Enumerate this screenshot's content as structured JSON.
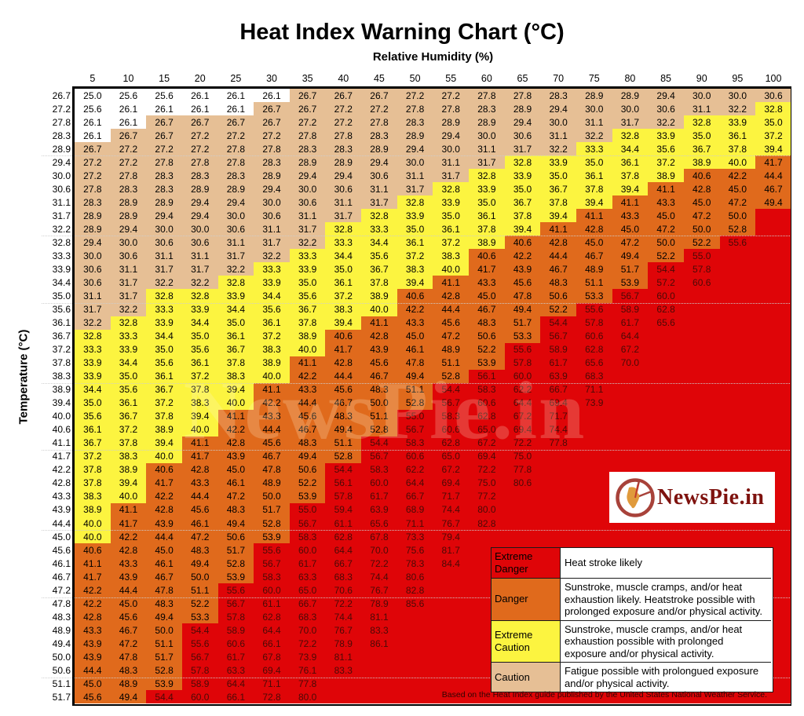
{
  "title": "Heat Index Warning Chart (°C)",
  "x_axis_label": "Relative Humidity (%)",
  "y_axis_label": "Temperature (°C)",
  "footnote": "Based on the Heat Index guide published by the United States National Weather Service.",
  "watermark": {
    "text": "NewsPie.in"
  },
  "logo": {
    "text": "NewsPie.in"
  },
  "colors": {
    "none": "#FFFFFF",
    "caution": "#E6BF95",
    "extreme_caution": "#FCF440",
    "danger": "#E06A1C",
    "extreme_danger": "#DF0508"
  },
  "legend": [
    {
      "label": "Extreme Danger",
      "color_key": "extreme_danger",
      "description": "Heat stroke likely"
    },
    {
      "label": "Danger",
      "color_key": "danger",
      "description": "Sunstroke, muscle cramps, and/or heat exhaustion likely. Heatstroke possible with prolonged exposure and/or physical activity."
    },
    {
      "label": "Extreme Caution",
      "color_key": "extreme_caution",
      "description": "Sunstroke, muscle cramps, and/or heat exhaustion possible with prolonged exposure and/or physical activity."
    },
    {
      "label": "Caution",
      "color_key": "caution",
      "description": "Fatigue possible with prolongued exposure and/or physical activity."
    }
  ],
  "chart_data": {
    "type": "heatmap",
    "title": "Heat Index Warning Chart (°C)",
    "xlabel": "Relative Humidity (%)",
    "ylabel": "Temperature (°C)",
    "legend_position": "bottom-right",
    "blank_cells_category": "extreme_danger",
    "gridlines_after_rows": [
      4,
      10,
      15,
      21,
      26,
      32,
      37,
      43
    ],
    "categories": [
      {
        "key": "none",
        "max_c": 26.4
      },
      {
        "key": "caution",
        "max_c": 32.5
      },
      {
        "key": "extreme_caution",
        "max_c": 40.3
      },
      {
        "key": "danger",
        "max_c": 54.1
      },
      {
        "key": "extreme_danger",
        "max_c": null
      }
    ],
    "x": [
      5,
      10,
      15,
      20,
      25,
      30,
      35,
      40,
      45,
      50,
      55,
      60,
      65,
      70,
      75,
      80,
      85,
      90,
      95,
      100
    ],
    "y": [
      26.7,
      27.2,
      27.8,
      28.3,
      28.9,
      29.4,
      30.0,
      30.6,
      31.1,
      31.7,
      32.2,
      32.8,
      33.3,
      33.9,
      34.4,
      35.0,
      35.6,
      36.1,
      36.7,
      37.2,
      37.8,
      38.3,
      38.9,
      39.4,
      40.0,
      40.6,
      41.1,
      41.7,
      42.2,
      42.8,
      43.3,
      43.9,
      44.4,
      45.0,
      45.6,
      46.1,
      46.7,
      47.2,
      47.8,
      48.3,
      48.9,
      49.4,
      50.0,
      50.6,
      51.1,
      51.7
    ],
    "values": [
      [
        25.0,
        25.6,
        25.6,
        26.1,
        26.1,
        26.1,
        26.7,
        26.7,
        26.7,
        27.2,
        27.2,
        27.8,
        27.8,
        28.3,
        28.9,
        28.9,
        29.4,
        30.0,
        30.0,
        30.6
      ],
      [
        25.6,
        26.1,
        26.1,
        26.1,
        26.1,
        26.7,
        26.7,
        27.2,
        27.2,
        27.8,
        27.8,
        28.3,
        28.9,
        29.4,
        30.0,
        30.0,
        30.6,
        31.1,
        32.2,
        32.8
      ],
      [
        26.1,
        26.1,
        26.7,
        26.7,
        26.7,
        26.7,
        27.2,
        27.2,
        27.8,
        28.3,
        28.9,
        28.9,
        29.4,
        30.0,
        31.1,
        31.7,
        32.2,
        32.8,
        33.9,
        35.0
      ],
      [
        26.1,
        26.7,
        26.7,
        27.2,
        27.2,
        27.2,
        27.8,
        27.8,
        28.3,
        28.9,
        29.4,
        30.0,
        30.6,
        31.1,
        32.2,
        32.8,
        33.9,
        35.0,
        36.1,
        37.2
      ],
      [
        26.7,
        27.2,
        27.2,
        27.2,
        27.8,
        27.8,
        28.3,
        28.3,
        28.9,
        29.4,
        30.0,
        31.1,
        31.7,
        32.2,
        33.3,
        34.4,
        35.6,
        36.7,
        37.8,
        39.4
      ],
      [
        27.2,
        27.2,
        27.8,
        27.8,
        27.8,
        28.3,
        28.9,
        28.9,
        29.4,
        30.0,
        31.1,
        31.7,
        32.8,
        33.9,
        35.0,
        36.1,
        37.2,
        38.9,
        40.0,
        41.7
      ],
      [
        27.2,
        27.8,
        28.3,
        28.3,
        28.3,
        28.9,
        29.4,
        29.4,
        30.6,
        31.1,
        31.7,
        32.8,
        33.9,
        35.0,
        36.1,
        37.8,
        38.9,
        40.6,
        42.2,
        44.4
      ],
      [
        27.8,
        28.3,
        28.3,
        28.9,
        28.9,
        29.4,
        30.0,
        30.6,
        31.1,
        31.7,
        32.8,
        33.9,
        35.0,
        36.7,
        37.8,
        39.4,
        41.1,
        42.8,
        45.0,
        46.7
      ],
      [
        28.3,
        28.9,
        28.9,
        29.4,
        29.4,
        30.0,
        30.6,
        31.1,
        31.7,
        32.8,
        33.9,
        35.0,
        36.7,
        37.8,
        39.4,
        41.1,
        43.3,
        45.0,
        47.2,
        49.4
      ],
      [
        28.9,
        28.9,
        29.4,
        29.4,
        30.0,
        30.6,
        31.1,
        31.7,
        32.8,
        33.9,
        35.0,
        36.1,
        37.8,
        39.4,
        41.1,
        43.3,
        45.0,
        47.2,
        50.0,
        null
      ],
      [
        28.9,
        29.4,
        30.0,
        30.0,
        30.6,
        31.1,
        31.7,
        32.8,
        33.3,
        35.0,
        36.1,
        37.8,
        39.4,
        41.1,
        42.8,
        45.0,
        47.2,
        50.0,
        52.8,
        null
      ],
      [
        29.4,
        30.0,
        30.6,
        30.6,
        31.1,
        31.7,
        32.2,
        33.3,
        34.4,
        36.1,
        37.2,
        38.9,
        40.6,
        42.8,
        45.0,
        47.2,
        50.0,
        52.2,
        55.6,
        null
      ],
      [
        30.0,
        30.6,
        31.1,
        31.1,
        31.7,
        32.2,
        33.3,
        34.4,
        35.6,
        37.2,
        38.3,
        40.6,
        42.2,
        44.4,
        46.7,
        49.4,
        52.2,
        55.0,
        null,
        null
      ],
      [
        30.6,
        31.1,
        31.7,
        31.7,
        32.2,
        33.3,
        33.9,
        35.0,
        36.7,
        38.3,
        40.0,
        41.7,
        43.9,
        46.7,
        48.9,
        51.7,
        54.4,
        57.8,
        null,
        null
      ],
      [
        30.6,
        31.7,
        32.2,
        32.2,
        32.8,
        33.9,
        35.0,
        36.1,
        37.8,
        39.4,
        41.1,
        43.3,
        45.6,
        48.3,
        51.1,
        53.9,
        57.2,
        60.6,
        null,
        null
      ],
      [
        31.1,
        31.7,
        32.8,
        32.8,
        33.9,
        34.4,
        35.6,
        37.2,
        38.9,
        40.6,
        42.8,
        45.0,
        47.8,
        50.6,
        53.3,
        56.7,
        60.0,
        null,
        null,
        null
      ],
      [
        31.7,
        32.2,
        33.3,
        33.9,
        34.4,
        35.6,
        36.7,
        38.3,
        40.0,
        42.2,
        44.4,
        46.7,
        49.4,
        52.2,
        55.6,
        58.9,
        62.8,
        null,
        null,
        null
      ],
      [
        32.2,
        32.8,
        33.9,
        34.4,
        35.0,
        36.1,
        37.8,
        39.4,
        41.1,
        43.3,
        45.6,
        48.3,
        51.7,
        54.4,
        57.8,
        61.7,
        65.6,
        null,
        null,
        null
      ],
      [
        32.8,
        33.3,
        34.4,
        35.0,
        36.1,
        37.2,
        38.9,
        40.6,
        42.8,
        45.0,
        47.2,
        50.6,
        53.3,
        56.7,
        60.6,
        64.4,
        null,
        null,
        null,
        null
      ],
      [
        33.3,
        33.9,
        35.0,
        35.6,
        36.7,
        38.3,
        40.0,
        41.7,
        43.9,
        46.1,
        48.9,
        52.2,
        55.6,
        58.9,
        62.8,
        67.2,
        null,
        null,
        null,
        null
      ],
      [
        33.9,
        34.4,
        35.6,
        36.1,
        37.8,
        38.9,
        41.1,
        42.8,
        45.6,
        47.8,
        51.1,
        53.9,
        57.8,
        61.7,
        65.6,
        70.0,
        null,
        null,
        null,
        null
      ],
      [
        33.9,
        35.0,
        36.1,
        37.2,
        38.3,
        40.0,
        42.2,
        44.4,
        46.7,
        49.4,
        52.8,
        56.1,
        60.0,
        63.9,
        68.3,
        null,
        null,
        null,
        null,
        null
      ],
      [
        34.4,
        35.6,
        36.7,
        37.8,
        39.4,
        41.1,
        43.3,
        45.6,
        48.3,
        51.1,
        54.4,
        58.3,
        62.2,
        66.7,
        71.1,
        null,
        null,
        null,
        null,
        null
      ],
      [
        35.0,
        36.1,
        37.2,
        38.3,
        40.0,
        42.2,
        44.4,
        46.7,
        50.0,
        52.8,
        56.7,
        60.6,
        64.4,
        69.4,
        73.9,
        null,
        null,
        null,
        null,
        null
      ],
      [
        35.6,
        36.7,
        37.8,
        39.4,
        41.1,
        43.3,
        45.6,
        48.3,
        51.1,
        55.0,
        58.3,
        62.8,
        67.2,
        71.7,
        null,
        null,
        null,
        null,
        null,
        null
      ],
      [
        36.1,
        37.2,
        38.9,
        40.0,
        42.2,
        44.4,
        46.7,
        49.4,
        52.8,
        56.7,
        60.6,
        65.0,
        69.4,
        74.4,
        null,
        null,
        null,
        null,
        null,
        null
      ],
      [
        36.7,
        37.8,
        39.4,
        41.1,
        42.8,
        45.6,
        48.3,
        51.1,
        54.4,
        58.3,
        62.8,
        67.2,
        72.2,
        77.8,
        null,
        null,
        null,
        null,
        null,
        null
      ],
      [
        37.2,
        38.3,
        40.0,
        41.7,
        43.9,
        46.7,
        49.4,
        52.8,
        56.7,
        60.6,
        65.0,
        69.4,
        75.0,
        null,
        null,
        null,
        null,
        null,
        null,
        null
      ],
      [
        37.8,
        38.9,
        40.6,
        42.8,
        45.0,
        47.8,
        50.6,
        54.4,
        58.3,
        62.2,
        67.2,
        72.2,
        77.8,
        null,
        null,
        null,
        null,
        null,
        null,
        null
      ],
      [
        37.8,
        39.4,
        41.7,
        43.3,
        46.1,
        48.9,
        52.2,
        56.1,
        60.0,
        64.4,
        69.4,
        75.0,
        80.6,
        null,
        null,
        null,
        null,
        null,
        null,
        null
      ],
      [
        38.3,
        40.0,
        42.2,
        44.4,
        47.2,
        50.0,
        53.9,
        57.8,
        61.7,
        66.7,
        71.7,
        77.2,
        null,
        null,
        null,
        null,
        null,
        null,
        null,
        null
      ],
      [
        38.9,
        41.1,
        42.8,
        45.6,
        48.3,
        51.7,
        55.0,
        59.4,
        63.9,
        68.9,
        74.4,
        80.0,
        null,
        null,
        null,
        null,
        null,
        null,
        null,
        null
      ],
      [
        40.0,
        41.7,
        43.9,
        46.1,
        49.4,
        52.8,
        56.7,
        61.1,
        65.6,
        71.1,
        76.7,
        82.8,
        null,
        null,
        null,
        null,
        null,
        null,
        null,
        null
      ],
      [
        40.0,
        42.2,
        44.4,
        47.2,
        50.6,
        53.9,
        58.3,
        62.8,
        67.8,
        73.3,
        79.4,
        null,
        null,
        null,
        null,
        null,
        null,
        null,
        null,
        null
      ],
      [
        40.6,
        42.8,
        45.0,
        48.3,
        51.7,
        55.6,
        60.0,
        64.4,
        70.0,
        75.6,
        81.7,
        null,
        null,
        null,
        null,
        null,
        null,
        null,
        null,
        null
      ],
      [
        41.1,
        43.3,
        46.1,
        49.4,
        52.8,
        56.7,
        61.7,
        66.7,
        72.2,
        78.3,
        84.4,
        null,
        null,
        null,
        null,
        null,
        null,
        null,
        null,
        null
      ],
      [
        41.7,
        43.9,
        46.7,
        50.0,
        53.9,
        58.3,
        63.3,
        68.3,
        74.4,
        80.6,
        null,
        null,
        null,
        null,
        null,
        null,
        null,
        null,
        null,
        null
      ],
      [
        42.2,
        44.4,
        47.8,
        51.1,
        55.6,
        60.0,
        65.0,
        70.6,
        76.7,
        82.8,
        null,
        null,
        null,
        null,
        null,
        null,
        null,
        null,
        null,
        null
      ],
      [
        42.2,
        45.0,
        48.3,
        52.2,
        56.7,
        61.1,
        66.7,
        72.2,
        78.9,
        85.6,
        null,
        null,
        null,
        null,
        null,
        null,
        null,
        null,
        null,
        null
      ],
      [
        42.8,
        45.6,
        49.4,
        53.3,
        57.8,
        62.8,
        68.3,
        74.4,
        81.1,
        null,
        null,
        null,
        null,
        null,
        null,
        null,
        null,
        null,
        null,
        null
      ],
      [
        43.3,
        46.7,
        50.0,
        54.4,
        58.9,
        64.4,
        70.0,
        76.7,
        83.3,
        null,
        null,
        null,
        null,
        null,
        null,
        null,
        null,
        null,
        null,
        null
      ],
      [
        43.9,
        47.2,
        51.1,
        55.6,
        60.6,
        66.1,
        72.2,
        78.9,
        86.1,
        null,
        null,
        null,
        null,
        null,
        null,
        null,
        null,
        null,
        null,
        null
      ],
      [
        43.9,
        47.8,
        51.7,
        56.7,
        61.7,
        67.8,
        73.9,
        81.1,
        null,
        null,
        null,
        null,
        null,
        null,
        null,
        null,
        null,
        null,
        null,
        null
      ],
      [
        44.4,
        48.3,
        52.8,
        57.8,
        63.3,
        69.4,
        76.1,
        83.3,
        null,
        null,
        null,
        null,
        null,
        null,
        null,
        null,
        null,
        null,
        null,
        null
      ],
      [
        45.0,
        48.9,
        53.9,
        58.9,
        64.4,
        71.1,
        77.8,
        null,
        null,
        null,
        null,
        null,
        null,
        null,
        null,
        null,
        null,
        null,
        null,
        null
      ],
      [
        45.6,
        49.4,
        54.4,
        60.0,
        66.1,
        72.8,
        80.0,
        null,
        null,
        null,
        null,
        null,
        null,
        null,
        null,
        null,
        null,
        null,
        null,
        null
      ]
    ]
  }
}
